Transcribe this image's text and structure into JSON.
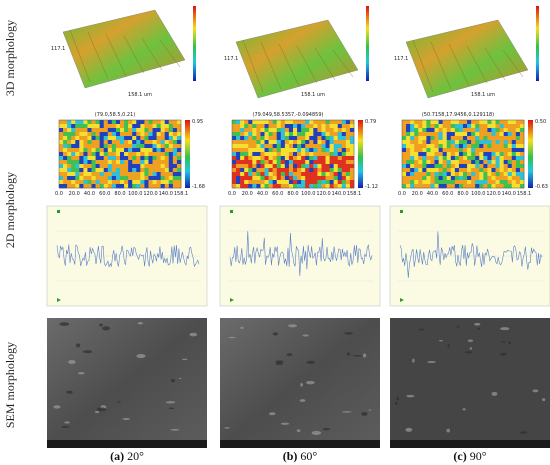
{
  "row_labels": [
    "3D morphology",
    "2D morphology",
    "SEM morphology"
  ],
  "columns": [
    {
      "caption_tag": "(a)",
      "caption_angle": "20°",
      "scale_3d": "158.1 um",
      "y_3d": "117.1",
      "cursor_2d": "(79.0,58.5,0.21)",
      "colorbar_top": "0.95",
      "colorbar_bottom": "-1.68"
    },
    {
      "caption_tag": "(b)",
      "caption_angle": "60°",
      "scale_3d": "158.1 um",
      "y_3d": "117.1",
      "cursor_2d": "(79.049,58.5357,-0.094859)",
      "colorbar_top": "0.79",
      "colorbar_bottom": "-1.12"
    },
    {
      "caption_tag": "(c)",
      "caption_angle": "90°",
      "scale_3d": "158.1 um",
      "y_3d": "117.1",
      "cursor_2d": "(50.7158,17.9456,0.129118)",
      "colorbar_top": "0.50",
      "colorbar_bottom": "-0.63"
    }
  ],
  "x_ticks_2d": [
    "0.0",
    "20.0",
    "40.0",
    "60.0",
    "80.0",
    "100.0",
    "120.0",
    "140.0",
    "158.1"
  ]
}
